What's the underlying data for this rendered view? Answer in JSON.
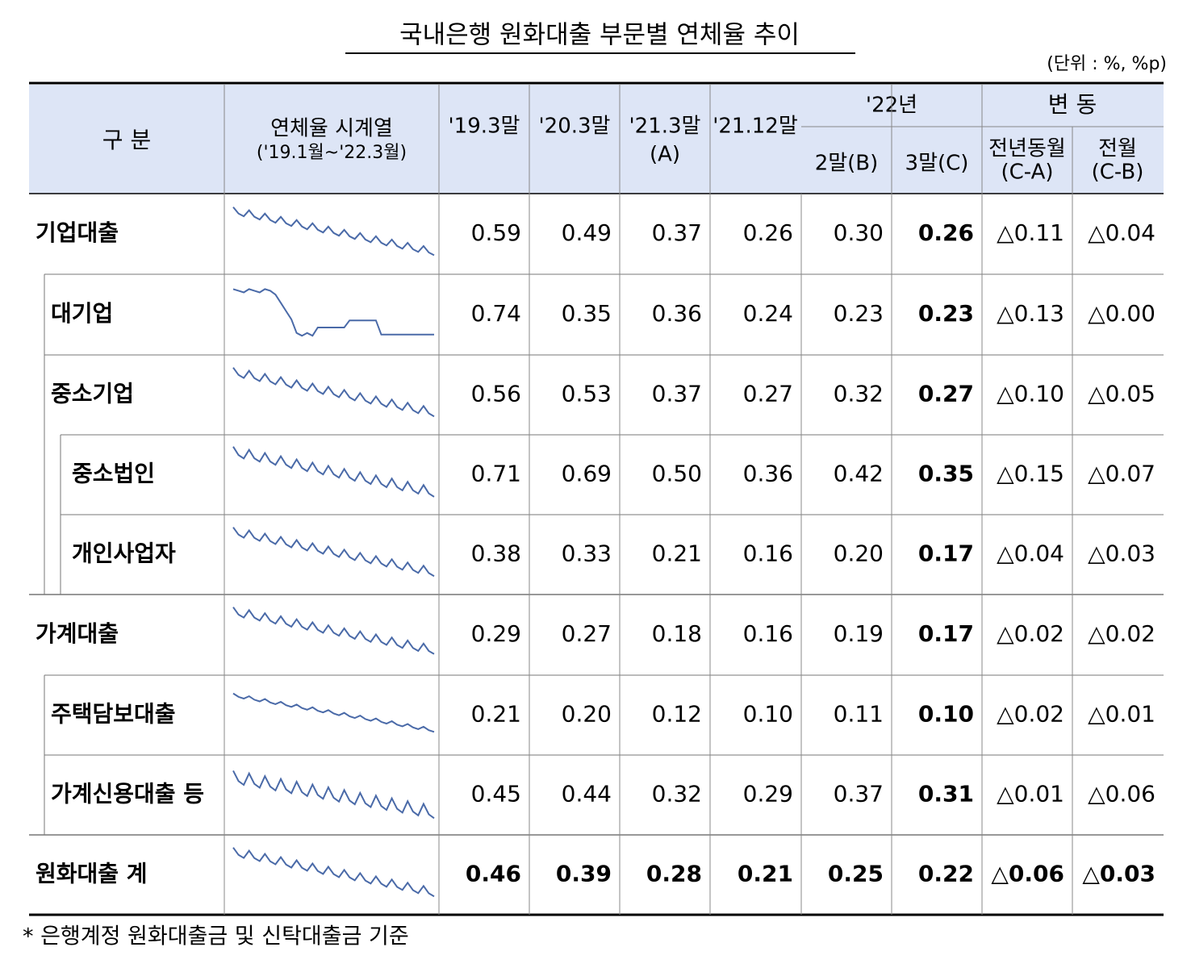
{
  "header": {
    "title": "국내은행 원화대출 부문별 연체율 추이",
    "unit": "(단위 : %, %p)"
  },
  "table": {
    "columns": {
      "category": "구 분",
      "series": [
        "연체율 시계열",
        "('19.1월~'22.3월)"
      ],
      "c1": "'19.3말",
      "c2": "'20.3말",
      "c3": [
        "'21.3말",
        "(A)"
      ],
      "c4": "'21.12말",
      "y22": "'22년",
      "c5": "2말(B)",
      "c6": "3말(C)",
      "change": "변 동",
      "c7": [
        "전년동월",
        "(C-A)"
      ],
      "c8": [
        "전월",
        "(C-B)"
      ]
    },
    "rows": [
      {
        "label": "기업대출",
        "cells": [
          "0.59",
          "0.49",
          "0.37",
          "0.26",
          "0.30",
          "0.26",
          "△0.11",
          "△0.04"
        ]
      },
      {
        "label": "대기업",
        "cells": [
          "0.74",
          "0.35",
          "0.36",
          "0.24",
          "0.23",
          "0.23",
          "△0.13",
          "△0.00"
        ]
      },
      {
        "label": "중소기업",
        "cells": [
          "0.56",
          "0.53",
          "0.37",
          "0.27",
          "0.32",
          "0.27",
          "△0.10",
          "△0.05"
        ]
      },
      {
        "label": "중소법인",
        "cells": [
          "0.71",
          "0.69",
          "0.50",
          "0.36",
          "0.42",
          "0.35",
          "△0.15",
          "△0.07"
        ]
      },
      {
        "label": "개인사업자",
        "cells": [
          "0.38",
          "0.33",
          "0.21",
          "0.16",
          "0.20",
          "0.17",
          "△0.04",
          "△0.03"
        ]
      },
      {
        "label": "가계대출",
        "cells": [
          "0.29",
          "0.27",
          "0.18",
          "0.16",
          "0.19",
          "0.17",
          "△0.02",
          "△0.02"
        ]
      },
      {
        "label": "주택담보대출",
        "cells": [
          "0.21",
          "0.20",
          "0.12",
          "0.10",
          "0.11",
          "0.10",
          "△0.02",
          "△0.01"
        ]
      },
      {
        "label": "가계신용대출 등",
        "cells": [
          "0.45",
          "0.44",
          "0.32",
          "0.29",
          "0.37",
          "0.31",
          "△0.01",
          "△0.06"
        ]
      },
      {
        "label": "원화대출 계",
        "cells": [
          "0.46",
          "0.39",
          "0.28",
          "0.21",
          "0.25",
          "0.22",
          "△0.06",
          "△0.03"
        ]
      }
    ]
  },
  "footnote": "* 은행계정 원화대출금 및 신탁대출금 기준"
}
